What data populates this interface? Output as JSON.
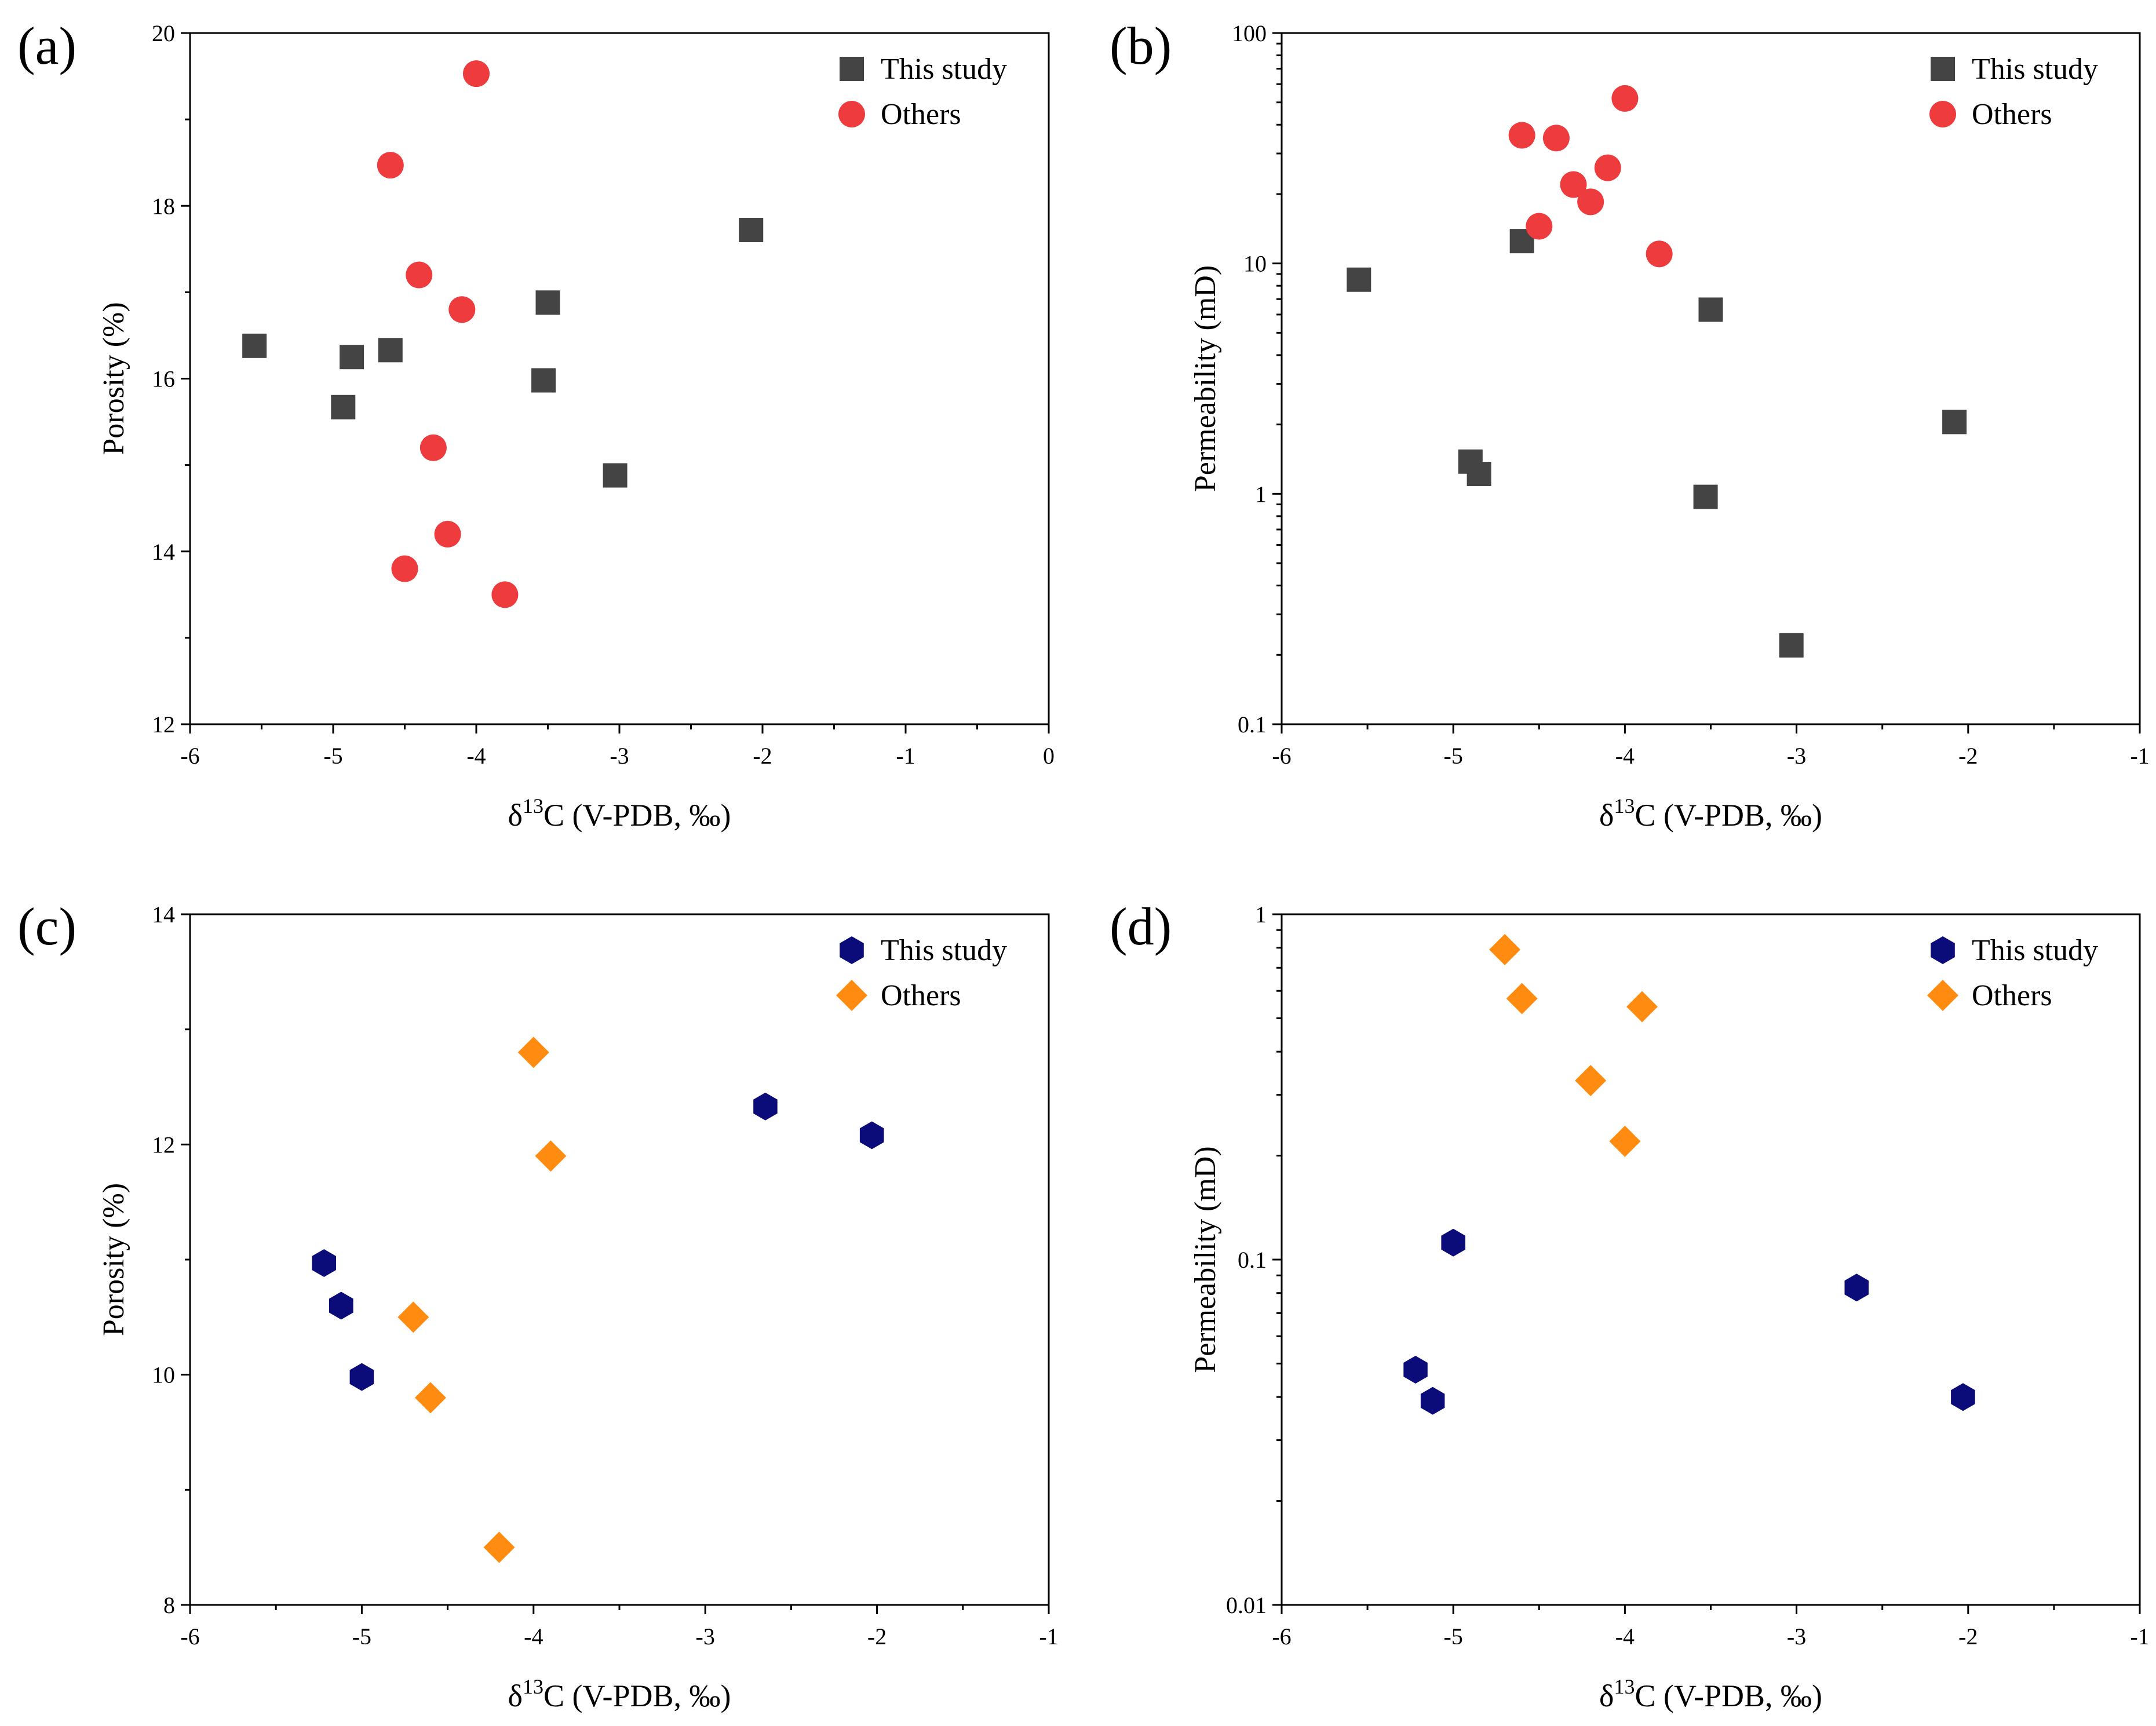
{
  "colors": {
    "this_study_a": "#444444",
    "others_a": "#EE3B3E",
    "this_study_c": "#0B0B7A",
    "others_c": "#FF8C10"
  },
  "chart_data": [
    {
      "id": "a",
      "panel_label": "(a)",
      "type": "scatter",
      "xlabel_prefix": "δ",
      "xlabel_sup": "13",
      "xlabel_suffix": "C (V-PDB, ‰)",
      "ylabel": "Porosity (%)",
      "xlim": [
        -6,
        0
      ],
      "ylim": [
        12,
        20
      ],
      "yscale": "linear",
      "xticks": [
        -6,
        -5,
        -4,
        -3,
        -2,
        -1,
        0
      ],
      "yticks": [
        12,
        14,
        16,
        18,
        20
      ],
      "tick_labels_x": [
        "-6",
        "-5",
        "-4",
        "-3",
        "-2",
        "-1",
        "0"
      ],
      "tick_labels_y": [
        "12",
        "14",
        "16",
        "18",
        "20"
      ],
      "legend_position": "top-right",
      "series": [
        {
          "name": "This study",
          "marker": "square",
          "color": "#444444",
          "points": [
            [
              -5.55,
              16.38
            ],
            [
              -4.93,
              15.67
            ],
            [
              -4.87,
              16.25
            ],
            [
              -4.6,
              16.33
            ],
            [
              -3.53,
              15.98
            ],
            [
              -3.5,
              16.88
            ],
            [
              -3.03,
              14.88
            ],
            [
              -2.08,
              17.72
            ]
          ]
        },
        {
          "name": "Others",
          "marker": "circle",
          "color": "#EE3B3E",
          "points": [
            [
              -4.6,
              18.47
            ],
            [
              -4.5,
              13.8
            ],
            [
              -4.4,
              17.2
            ],
            [
              -4.3,
              15.2
            ],
            [
              -4.2,
              14.2
            ],
            [
              -4.1,
              16.8
            ],
            [
              -4.0,
              19.53
            ],
            [
              -3.8,
              13.5
            ]
          ]
        }
      ]
    },
    {
      "id": "b",
      "panel_label": "(b)",
      "type": "scatter",
      "xlabel_prefix": "δ",
      "xlabel_sup": "13",
      "xlabel_suffix": "C (V-PDB, ‰)",
      "ylabel": "Permeability (mD)",
      "xlim": [
        -6,
        -1
      ],
      "ylim": [
        0.1,
        100
      ],
      "yscale": "log",
      "xticks": [
        -6,
        -5,
        -4,
        -3,
        -2,
        -1
      ],
      "yticks": [
        0.1,
        1,
        10,
        100
      ],
      "tick_labels_x": [
        "-6",
        "-5",
        "-4",
        "-3",
        "-2",
        "-1"
      ],
      "tick_labels_y": [
        "0.1",
        "1",
        "10",
        "100"
      ],
      "legend_position": "top-right",
      "series": [
        {
          "name": "This study",
          "marker": "square",
          "color": "#444444",
          "points": [
            [
              -5.55,
              8.5
            ],
            [
              -4.6,
              12.5
            ],
            [
              -4.9,
              1.38
            ],
            [
              -4.85,
              1.22
            ],
            [
              -3.5,
              6.3
            ],
            [
              -3.53,
              0.97
            ],
            [
              -3.03,
              0.22
            ],
            [
              -2.08,
              2.05
            ]
          ]
        },
        {
          "name": "Others",
          "marker": "circle",
          "color": "#EE3B3E",
          "points": [
            [
              -4.6,
              36
            ],
            [
              -4.4,
              35
            ],
            [
              -4.0,
              52
            ],
            [
              -4.3,
              22
            ],
            [
              -4.1,
              26
            ],
            [
              -4.2,
              18.5
            ],
            [
              -4.5,
              14.5
            ],
            [
              -3.8,
              11
            ]
          ]
        }
      ]
    },
    {
      "id": "c",
      "panel_label": "(c)",
      "type": "scatter",
      "xlabel_prefix": "δ",
      "xlabel_sup": "13",
      "xlabel_suffix": "C (V-PDB, ‰)",
      "ylabel": "Porosity (%)",
      "xlim": [
        -6,
        -1
      ],
      "ylim": [
        8,
        14
      ],
      "yscale": "linear",
      "xticks": [
        -6,
        -5,
        -4,
        -3,
        -2,
        -1
      ],
      "yticks": [
        8,
        10,
        12,
        14
      ],
      "tick_labels_x": [
        "-6",
        "-5",
        "-4",
        "-3",
        "-2",
        "-1"
      ],
      "tick_labels_y": [
        "8",
        "10",
        "12",
        "14"
      ],
      "legend_position": "top-right",
      "series": [
        {
          "name": "This study",
          "marker": "hexagon",
          "color": "#0B0B7A",
          "points": [
            [
              -5.22,
              10.97
            ],
            [
              -5.12,
              10.6
            ],
            [
              -5.0,
              9.98
            ],
            [
              -2.65,
              12.33
            ],
            [
              -2.03,
              12.08
            ]
          ]
        },
        {
          "name": "Others",
          "marker": "diamond",
          "color": "#FF8C10",
          "points": [
            [
              -4.0,
              12.8
            ],
            [
              -3.9,
              11.9
            ],
            [
              -4.7,
              10.5
            ],
            [
              -4.6,
              9.8
            ],
            [
              -4.2,
              8.5
            ]
          ]
        }
      ]
    },
    {
      "id": "d",
      "panel_label": "(d)",
      "type": "scatter",
      "xlabel_prefix": "δ",
      "xlabel_sup": "13",
      "xlabel_suffix": "C (V-PDB, ‰)",
      "ylabel": "Permeability (mD)",
      "xlim": [
        -6,
        -1
      ],
      "ylim": [
        0.01,
        1
      ],
      "yscale": "log",
      "xticks": [
        -6,
        -5,
        -4,
        -3,
        -2,
        -1
      ],
      "yticks": [
        0.01,
        0.1,
        1
      ],
      "tick_labels_x": [
        "-6",
        "-5",
        "-4",
        "-3",
        "-2",
        "-1"
      ],
      "tick_labels_y": [
        "0.01",
        "0.1",
        "1"
      ],
      "legend_position": "top-right",
      "series": [
        {
          "name": "This study",
          "marker": "hexagon",
          "color": "#0B0B7A",
          "points": [
            [
              -5.0,
              0.112
            ],
            [
              -5.22,
              0.048
            ],
            [
              -5.12,
              0.039
            ],
            [
              -2.65,
              0.083
            ],
            [
              -2.03,
              0.04
            ]
          ]
        },
        {
          "name": "Others",
          "marker": "diamond",
          "color": "#FF8C10",
          "points": [
            [
              -4.7,
              0.79
            ],
            [
              -4.6,
              0.57
            ],
            [
              -3.9,
              0.54
            ],
            [
              -4.2,
              0.33
            ],
            [
              -4.0,
              0.22
            ]
          ]
        }
      ]
    }
  ]
}
